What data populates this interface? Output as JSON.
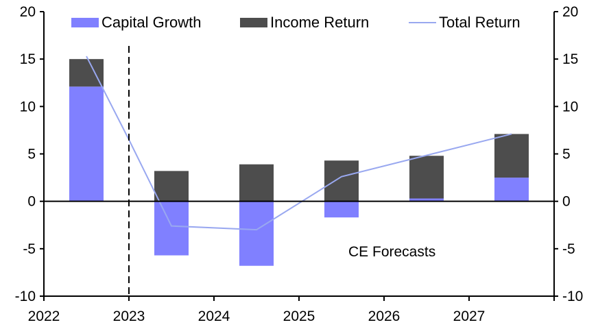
{
  "chart_data": {
    "type": "bar",
    "stacked": true,
    "title": "",
    "xlabel": "",
    "ylabel": "",
    "ylim": [
      -10,
      20
    ],
    "y_ticks": [
      -10,
      -5,
      0,
      5,
      10,
      15,
      20
    ],
    "y_tick_labels": [
      "-10",
      "-5",
      "0",
      "5",
      "10",
      "15",
      "20"
    ],
    "y2lim": [
      -10,
      20
    ],
    "y2_tick_labels": [
      "-10",
      "-5",
      "0",
      "5",
      "10",
      "15",
      "20"
    ],
    "x_tick_labels": [
      "2022",
      "2023",
      "2024",
      "2025",
      "2026",
      "2027"
    ],
    "xlim": [
      2022,
      2028
    ],
    "categories": [
      "2022",
      "2023",
      "2024",
      "2025",
      "2026",
      "2027"
    ],
    "bar_positions": [
      2022.5,
      2023.5,
      2024.5,
      2025.5,
      2026.5,
      2027.5
    ],
    "series": [
      {
        "name": "Capital Growth",
        "type": "bar",
        "color": "#8080ff",
        "values": [
          12.1,
          -5.7,
          -6.8,
          -1.7,
          0.3,
          2.5
        ]
      },
      {
        "name": "Income Return",
        "type": "bar",
        "color": "#4d4d4d",
        "values": [
          2.9,
          3.2,
          3.9,
          4.3,
          4.5,
          4.6
        ]
      },
      {
        "name": "Total Return",
        "type": "line",
        "color": "#99a8f0",
        "x": [
          2022.5,
          2023.0,
          2023.5,
          2024.5,
          2025.5,
          2027.5
        ],
        "values": [
          15.3,
          6.5,
          -2.6,
          -3.0,
          2.6,
          7.1
        ]
      }
    ],
    "forecast_divider_x": 2023,
    "annotations": [
      {
        "text": "CE Forecasts"
      }
    ],
    "legend": {
      "position": "top",
      "entries": [
        "Capital Growth",
        "Income Return",
        "Total Return"
      ]
    },
    "grid": false
  }
}
